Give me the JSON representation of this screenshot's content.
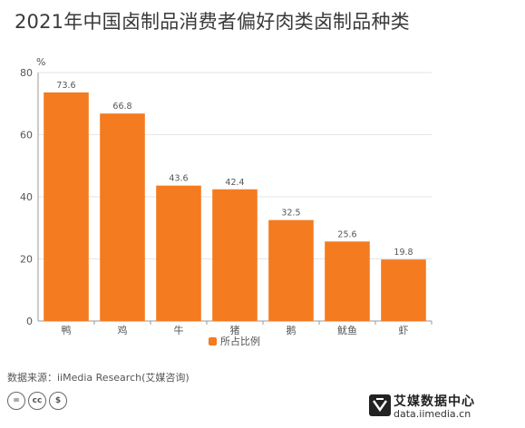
{
  "title": "2021年中国卤制品消费者偏好肉类卤制品种类",
  "source": "数据来源：iiMedia Research(艾媒咨询)",
  "license_icons": [
    "=",
    "cc",
    "$"
  ],
  "brand": {
    "name": "艾媒数据中心",
    "url": "data.iimedia.cn"
  },
  "colors": {
    "bar": "#f47b20",
    "grid": "#e6e6e6",
    "axis": "#9a9a9a",
    "text": "#555555"
  },
  "chart_data": {
    "type": "bar",
    "title": "",
    "ylabel": "%",
    "xlabel": "",
    "ylim": [
      0,
      80
    ],
    "yticks": [
      0,
      20,
      40,
      60,
      80
    ],
    "grid": true,
    "legend_position": "bottom",
    "categories": [
      "鸭",
      "鸡",
      "牛",
      "猪",
      "鹅",
      "鱿鱼",
      "虾"
    ],
    "series": [
      {
        "name": "所占比例",
        "values": [
          73.6,
          66.8,
          43.6,
          42.4,
          32.5,
          25.6,
          19.8
        ],
        "labels": [
          "73.6",
          "66.8",
          "43.6",
          "42.4",
          "32.5",
          "25.6",
          "19.8"
        ]
      }
    ]
  }
}
